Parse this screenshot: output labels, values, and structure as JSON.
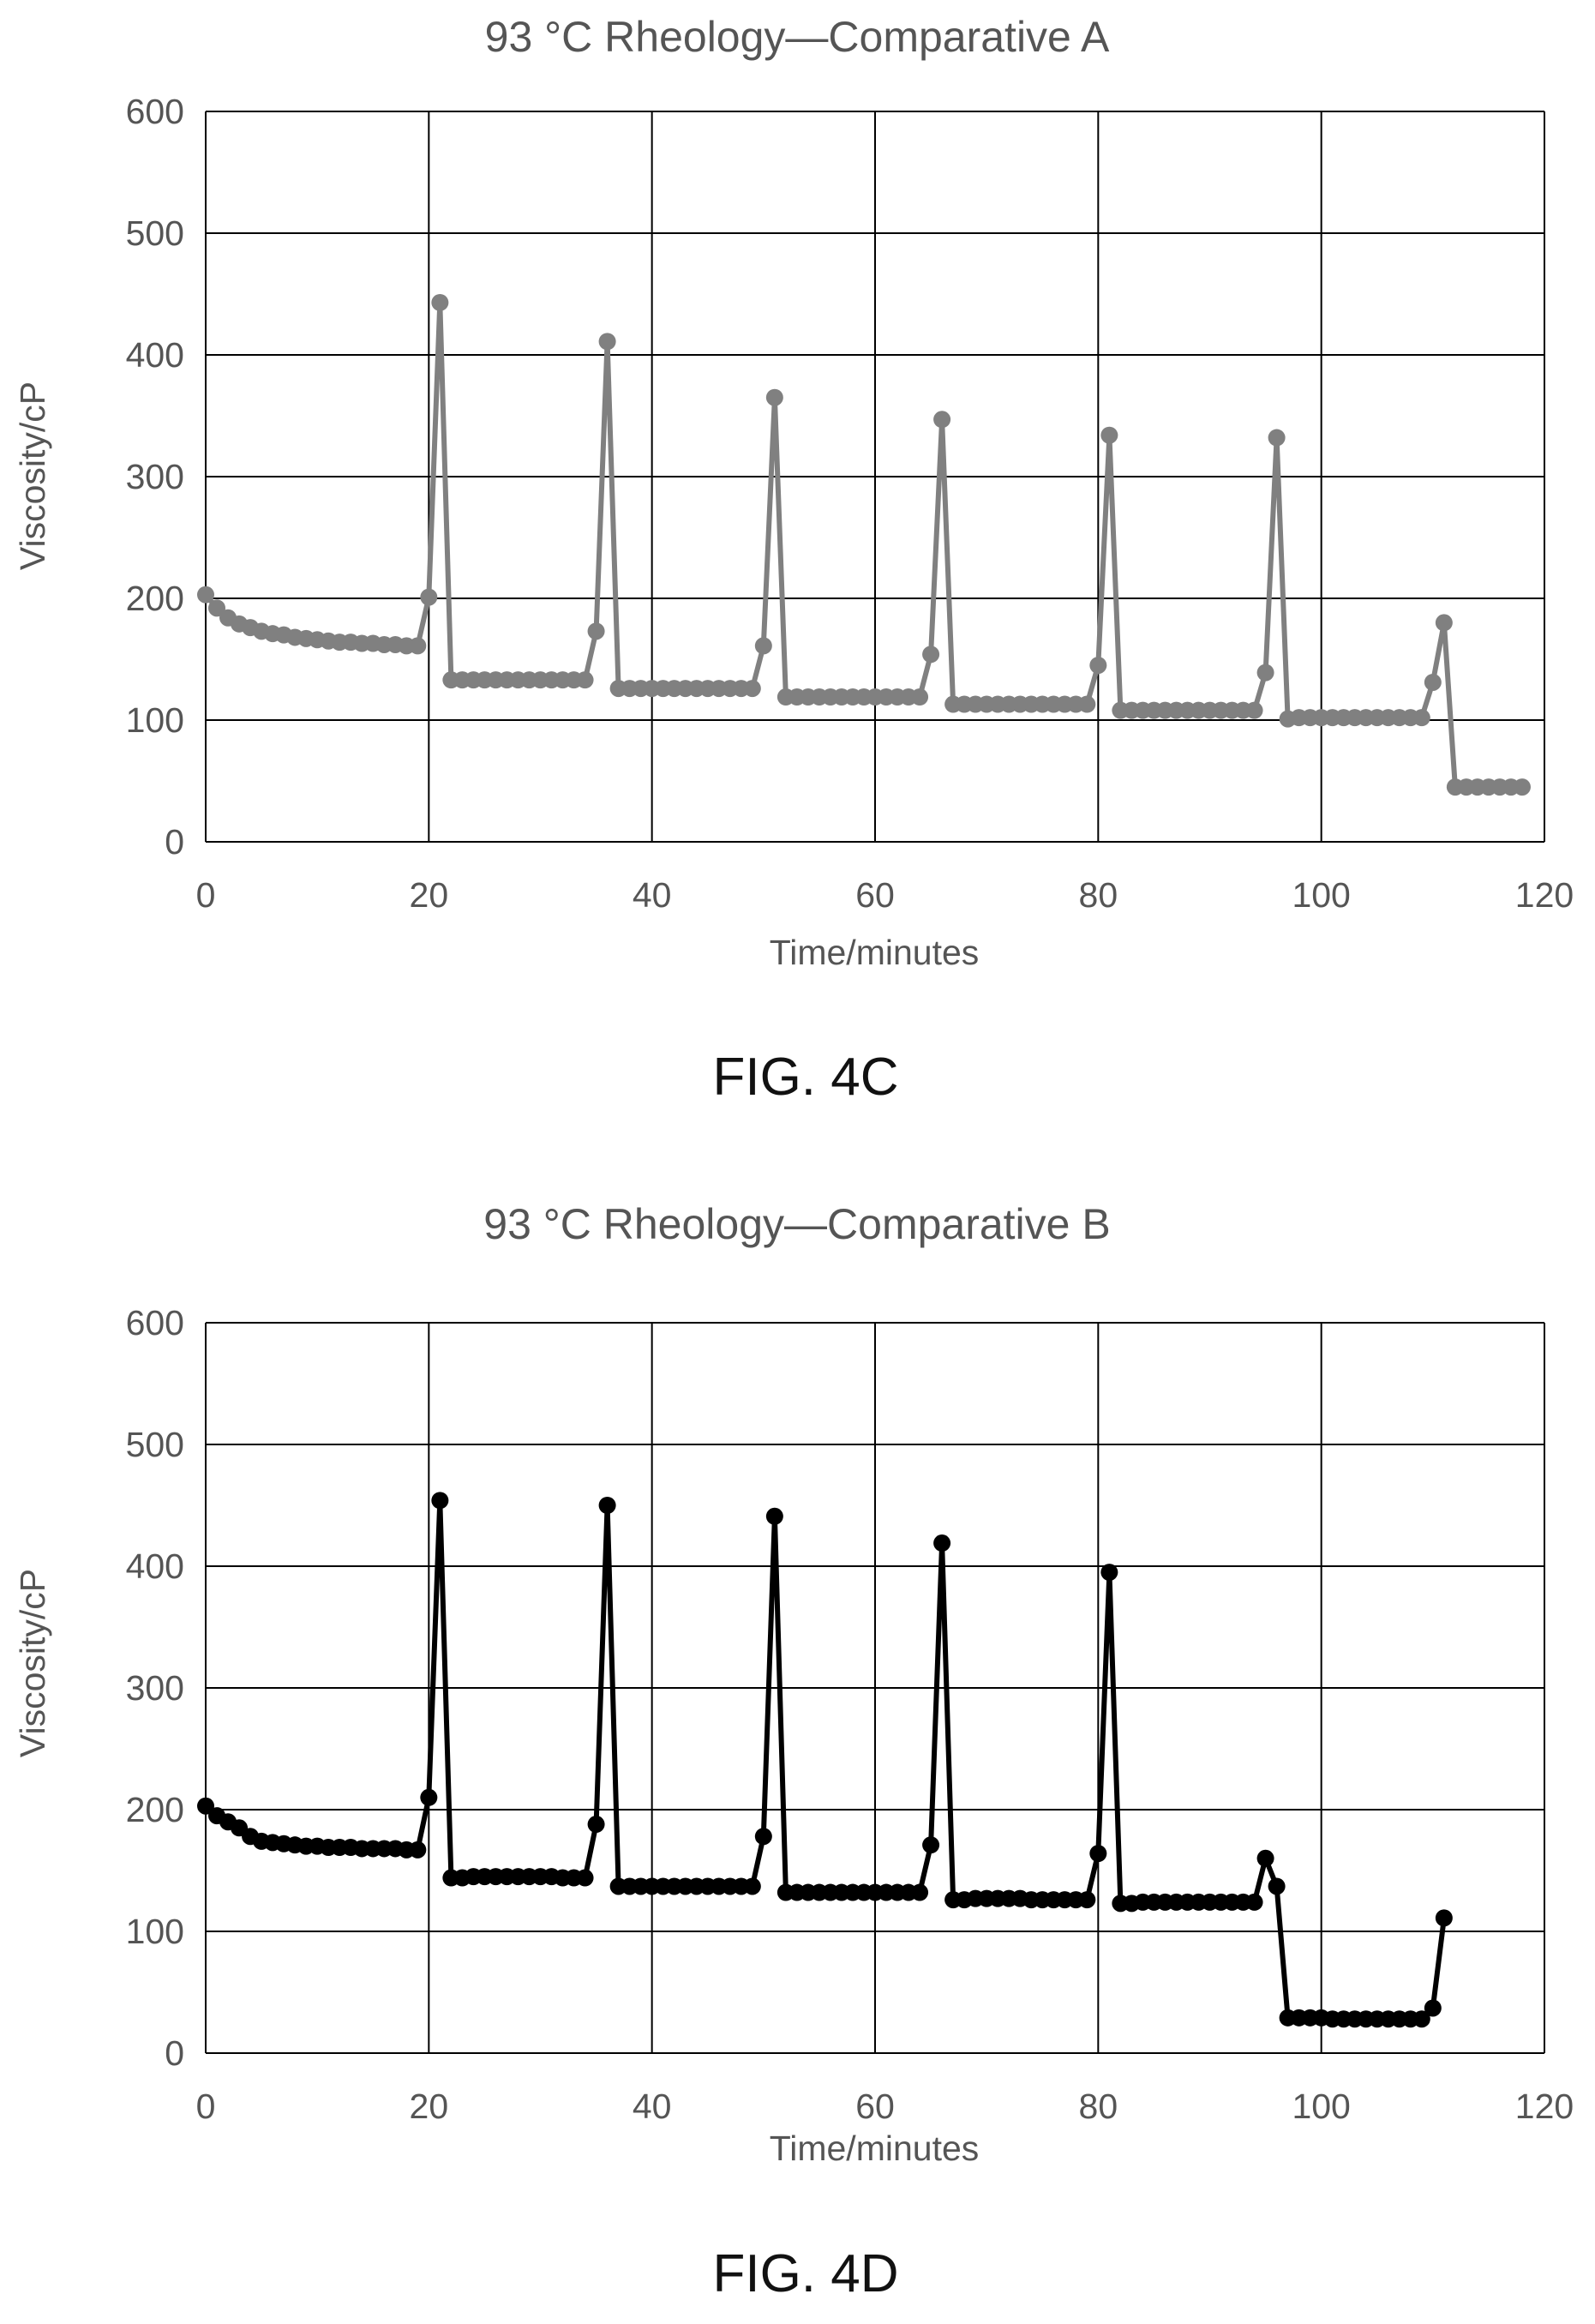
{
  "chart_data": [
    {
      "type": "line",
      "title": "93 °C Rheology—Comparative A",
      "xlabel": "Time/minutes",
      "ylabel": "Viscosity/cP",
      "xlim": [
        0,
        120
      ],
      "ylim": [
        0,
        600
      ],
      "xticks": [
        "0",
        "20",
        "40",
        "60",
        "80",
        "100",
        "120"
      ],
      "yticks": [
        "0",
        "100",
        "200",
        "300",
        "400",
        "500",
        "600"
      ],
      "grid": true,
      "caption": "FIG. 4C",
      "series": [
        {
          "color": "#808080",
          "marker": "circle",
          "x": [
            0,
            1,
            2,
            3,
            4,
            5,
            6,
            7,
            8,
            9,
            10,
            11,
            12,
            13,
            14,
            15,
            16,
            17,
            18,
            19,
            20,
            21,
            22,
            23,
            24,
            25,
            26,
            27,
            28,
            29,
            30,
            31,
            32,
            33,
            34,
            35,
            36,
            37,
            38,
            39,
            40,
            41,
            42,
            43,
            44,
            45,
            46,
            47,
            48,
            49,
            50,
            51,
            52,
            53,
            54,
            55,
            56,
            57,
            58,
            59,
            60,
            61,
            62,
            63,
            64,
            65,
            66,
            67,
            68,
            69,
            70,
            71,
            72,
            73,
            74,
            75,
            76,
            77,
            78,
            79,
            80,
            81,
            82,
            83,
            84,
            85,
            86,
            87,
            88,
            89,
            90,
            91,
            92,
            93,
            94,
            95,
            96,
            97,
            98,
            99,
            100,
            101,
            102,
            103,
            104,
            105,
            106,
            107,
            108,
            109,
            110,
            111,
            112,
            113,
            114,
            115,
            116,
            117,
            118
          ],
          "y": [
            203,
            192,
            184,
            179,
            176,
            173,
            171,
            170,
            168,
            167,
            166,
            165,
            164,
            164,
            163,
            163,
            162,
            162,
            161,
            161,
            201,
            443,
            133,
            133,
            133,
            133,
            133,
            133,
            133,
            133,
            133,
            133,
            133,
            133,
            133,
            173,
            411,
            126,
            126,
            126,
            126,
            126,
            126,
            126,
            126,
            126,
            126,
            126,
            126,
            126,
            161,
            365,
            119,
            119,
            119,
            119,
            119,
            119,
            119,
            119,
            119,
            119,
            119,
            119,
            119,
            154,
            347,
            113,
            113,
            113,
            113,
            113,
            113,
            113,
            113,
            113,
            113,
            113,
            113,
            113,
            145,
            334,
            108,
            108,
            108,
            108,
            108,
            108,
            108,
            108,
            108,
            108,
            108,
            108,
            108,
            139,
            332,
            101,
            102,
            102,
            102,
            102,
            102,
            102,
            102,
            102,
            102,
            102,
            102,
            102,
            131,
            180,
            45,
            45,
            45,
            45,
            45,
            45,
            45
          ]
        }
      ]
    },
    {
      "type": "line",
      "title": "93 °C Rheology—Comparative B",
      "xlabel": "Time/minutes",
      "ylabel": "Viscosity/cP",
      "xlim": [
        0,
        120
      ],
      "ylim": [
        0,
        600
      ],
      "xticks": [
        "0",
        "20",
        "40",
        "60",
        "80",
        "100",
        "120"
      ],
      "yticks": [
        "0",
        "100",
        "200",
        "300",
        "400",
        "500",
        "600"
      ],
      "grid": true,
      "caption": "FIG. 4D",
      "series": [
        {
          "color": "#000000",
          "marker": "circle",
          "x": [
            0,
            1,
            2,
            3,
            4,
            5,
            6,
            7,
            8,
            9,
            10,
            11,
            12,
            13,
            14,
            15,
            16,
            17,
            18,
            19,
            20,
            21,
            22,
            23,
            24,
            25,
            26,
            27,
            28,
            29,
            30,
            31,
            32,
            33,
            34,
            35,
            36,
            37,
            38,
            39,
            40,
            41,
            42,
            43,
            44,
            45,
            46,
            47,
            48,
            49,
            50,
            51,
            52,
            53,
            54,
            55,
            56,
            57,
            58,
            59,
            60,
            61,
            62,
            63,
            64,
            65,
            66,
            67,
            68,
            69,
            70,
            71,
            72,
            73,
            74,
            75,
            76,
            77,
            78,
            79,
            80,
            81,
            82,
            83,
            84,
            85,
            86,
            87,
            88,
            89,
            90,
            91,
            92,
            93,
            94,
            95,
            96,
            97,
            98,
            99,
            100,
            101,
            102,
            103,
            104,
            105,
            106,
            107,
            108,
            109,
            110,
            111
          ],
          "y": [
            203,
            195,
            190,
            185,
            178,
            174,
            173,
            172,
            171,
            170,
            170,
            169,
            169,
            169,
            168,
            168,
            168,
            168,
            167,
            167,
            210,
            454,
            144,
            144,
            145,
            145,
            145,
            145,
            145,
            145,
            145,
            145,
            144,
            144,
            144,
            188,
            450,
            137,
            137,
            137,
            137,
            137,
            137,
            137,
            137,
            137,
            137,
            137,
            137,
            137,
            178,
            441,
            132,
            132,
            132,
            132,
            132,
            132,
            132,
            132,
            132,
            132,
            132,
            132,
            132,
            171,
            419,
            126,
            126,
            127,
            127,
            127,
            127,
            127,
            126,
            126,
            126,
            126,
            126,
            126,
            164,
            395,
            123,
            123,
            124,
            124,
            124,
            124,
            124,
            124,
            124,
            124,
            124,
            124,
            124,
            160,
            137,
            29,
            29,
            29,
            29,
            28,
            28,
            28,
            28,
            28,
            28,
            28,
            28,
            28,
            37,
            111
          ]
        }
      ]
    }
  ]
}
